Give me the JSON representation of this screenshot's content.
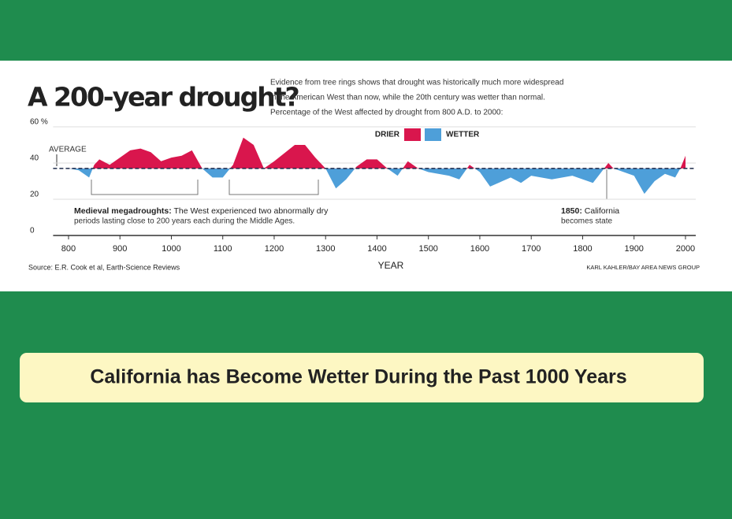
{
  "chart_data": {
    "type": "area",
    "title": "A 200-year drought?",
    "subtitle": [
      "Evidence from tree rings shows that drought was historically much more widespread",
      "in the American West than now, while the 20th century was wetter than normal.",
      "Percentage of the West affected by drought from 800 A.D. to 2000:"
    ],
    "legend": [
      {
        "name": "DRIER",
        "color": "#d9164d"
      },
      {
        "name": "WETTER",
        "color": "#4e9fd9"
      }
    ],
    "average_label": "AVERAGE",
    "average": 37,
    "x_label": "YEAR",
    "source": "Source: E.R. Cook et al, Earth-Science Reviews",
    "credit": "KARL KAHLER/BAY AREA NEWS GROUP",
    "annotations": [
      {
        "label": "Medieval megadroughts:",
        "lines": [
          "The West experienced two abnormally dry",
          "periods lasting close to 200 years each during the Middle Ages."
        ]
      },
      {
        "label": "1850:",
        "lines": [
          "California",
          "becomes state"
        ]
      }
    ],
    "x": [
      800,
      820,
      840,
      850,
      860,
      880,
      900,
      920,
      940,
      960,
      980,
      1000,
      1020,
      1040,
      1060,
      1080,
      1100,
      1120,
      1140,
      1160,
      1180,
      1200,
      1240,
      1260,
      1280,
      1300,
      1320,
      1340,
      1360,
      1380,
      1400,
      1420,
      1440,
      1460,
      1480,
      1500,
      1540,
      1560,
      1580,
      1600,
      1620,
      1660,
      1680,
      1700,
      1740,
      1780,
      1820,
      1850,
      1860,
      1900,
      1920,
      1940,
      1960,
      1980,
      1990,
      2000
    ],
    "series": [
      {
        "values": [
          37,
          36,
          32,
          39,
          42,
          39,
          43,
          47,
          48,
          46,
          41,
          43,
          44,
          47,
          37,
          32,
          32,
          39,
          54,
          50,
          37,
          41,
          50,
          50,
          43,
          37,
          26,
          31,
          38,
          42,
          42,
          37,
          33,
          41,
          37,
          35,
          33,
          31,
          39,
          35,
          27,
          32,
          29,
          33,
          31,
          33,
          29,
          40,
          37,
          33,
          23,
          30,
          34,
          32,
          37,
          44
        ]
      }
    ],
    "xlim": [
      770,
      2020
    ],
    "xticks": [
      800,
      900,
      1000,
      1100,
      1200,
      1300,
      1400,
      1500,
      1600,
      1700,
      1800,
      1900,
      2000
    ],
    "ylim": [
      0,
      60
    ],
    "yticks": [
      0,
      20,
      40,
      {
        "value": 60,
        "label": "60 %"
      }
    ],
    "grid": true
  },
  "caption": "California has Become Wetter During the Past 1000 Years"
}
